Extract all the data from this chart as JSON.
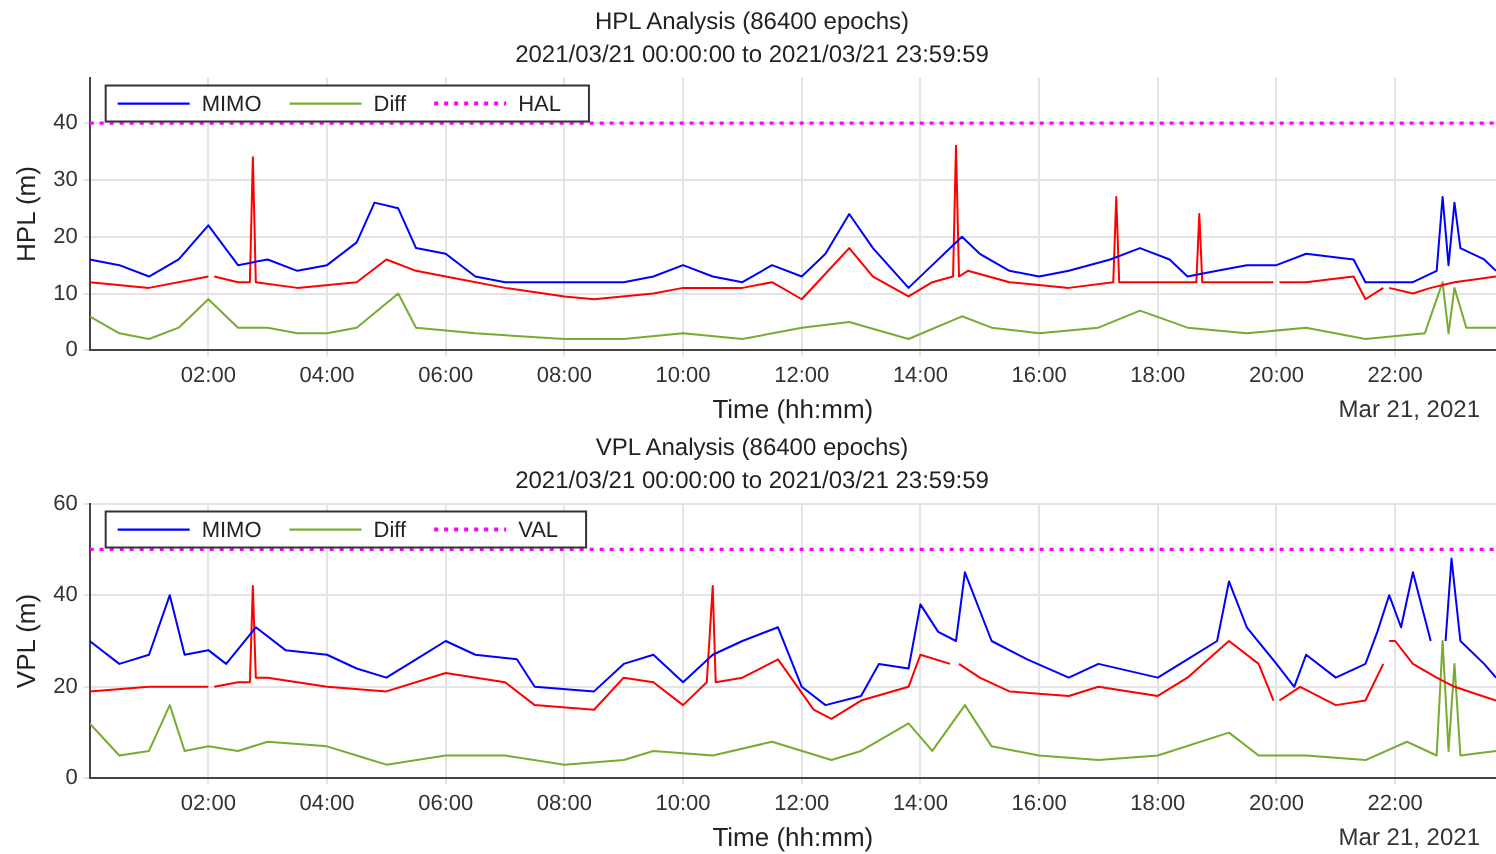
{
  "chart_data": [
    {
      "type": "line",
      "title": "HPL Analysis (86400 epochs)",
      "subtitle": "2021/03/21 00:00:00 to 2021/03/21 23:59:59",
      "xlabel": "Time (hh:mm)",
      "ylabel": "HPL (m)",
      "xlim": [
        0,
        23.7
      ],
      "xticks": [
        {
          "value": 2,
          "label": "02:00"
        },
        {
          "value": 4,
          "label": "04:00"
        },
        {
          "value": 6,
          "label": "06:00"
        },
        {
          "value": 8,
          "label": "08:00"
        },
        {
          "value": 10,
          "label": "10:00"
        },
        {
          "value": 12,
          "label": "12:00"
        },
        {
          "value": 14,
          "label": "14:00"
        },
        {
          "value": 16,
          "label": "16:00"
        },
        {
          "value": 18,
          "label": "18:00"
        },
        {
          "value": 20,
          "label": "20:00"
        },
        {
          "value": 22,
          "label": "22:00"
        }
      ],
      "ylim": [
        0,
        48
      ],
      "yticks": [
        0,
        10,
        20,
        30,
        40
      ],
      "grid": true,
      "legend": "top left",
      "marker": "none",
      "line_style": "solid",
      "annotations": [
        "Mar 21, 2021"
      ],
      "ref_lines": [
        {
          "axis": "y",
          "value": 40,
          "label": "HAL",
          "color": "#ff00ff",
          "line_style": "dotted"
        }
      ],
      "series": [
        {
          "name": "MIMO",
          "color": "#0000ff",
          "x": [
            0,
            0.5,
            1,
            1.5,
            2,
            2.5,
            3,
            3.5,
            4,
            4.5,
            4.8,
            5.2,
            5.5,
            6,
            6.5,
            7,
            8,
            9,
            9.5,
            10,
            10.5,
            11,
            11.5,
            12,
            12.4,
            12.8,
            13.2,
            13.8,
            14.2,
            14.7,
            15,
            15.5,
            16,
            16.5,
            17.2,
            17.7,
            18.2,
            18.5,
            19,
            19.5,
            20,
            20.5,
            21.3,
            21.5,
            22.3,
            22.7,
            22.8,
            22.9,
            23,
            23.1,
            23.5,
            23.7
          ],
          "values": [
            16,
            15,
            13,
            16,
            22,
            15,
            16,
            14,
            15,
            19,
            26,
            25,
            18,
            17,
            13,
            12,
            12,
            12,
            13,
            15,
            13,
            12,
            15,
            13,
            17,
            24,
            18,
            11,
            15,
            20,
            17,
            14,
            13,
            14,
            16,
            18,
            16,
            13,
            14,
            15,
            15,
            17,
            16,
            12,
            12,
            14,
            27,
            15,
            26,
            18,
            16,
            14
          ]
        },
        {
          "color": "#ff0000",
          "x": [
            0,
            1,
            2,
            2.05,
            2.1,
            2.5,
            2.7,
            2.75,
            2.8,
            3.5,
            4.5,
            5,
            5.5,
            6,
            7,
            8,
            8.5,
            9.5,
            10,
            11,
            11.5,
            12,
            12.8,
            13.2,
            13.8,
            14.2,
            14.55,
            14.6,
            14.65,
            14.8,
            15.5,
            16.5,
            17.25,
            17.3,
            17.35,
            17.7,
            18.5,
            18.65,
            18.7,
            18.75,
            19.5,
            19.95,
            20,
            20.05,
            20.5,
            21.3,
            21.5,
            21.8,
            21.85,
            21.9,
            22.3,
            22.6,
            23,
            23.7
          ],
          "values": [
            12,
            11,
            13,
            null,
            13,
            12,
            12,
            34,
            12,
            11,
            12,
            16,
            14,
            13,
            11,
            9.5,
            9,
            10,
            11,
            11,
            12,
            9,
            18,
            13,
            9.5,
            12,
            13,
            36,
            13,
            14,
            12,
            11,
            12,
            27,
            12,
            12,
            12,
            12,
            24,
            12,
            12,
            12,
            null,
            12,
            12,
            13,
            9,
            11,
            null,
            11,
            10,
            11,
            12,
            13
          ]
        },
        {
          "name": "Diff",
          "color": "#77ac30",
          "x": [
            0,
            0.5,
            1,
            1.5,
            2,
            2.5,
            3,
            3.5,
            4,
            4.5,
            5.2,
            5.5,
            6.5,
            8,
            9,
            10,
            11,
            12,
            12.8,
            13.8,
            14.7,
            15.2,
            16,
            17,
            17.7,
            18.5,
            19.5,
            20.5,
            21.5,
            22.5,
            22.8,
            22.9,
            23,
            23.2,
            23.7
          ],
          "values": [
            6,
            3,
            2,
            4,
            9,
            4,
            4,
            3,
            3,
            4,
            10,
            4,
            3,
            2,
            2,
            3,
            2,
            4,
            5,
            2,
            6,
            4,
            3,
            4,
            7,
            4,
            3,
            4,
            2,
            3,
            12,
            3,
            11,
            4,
            4
          ]
        }
      ]
    },
    {
      "type": "line",
      "title": "VPL Analysis (86400 epochs)",
      "subtitle": "2021/03/21 00:00:00 to 2021/03/21 23:59:59",
      "xlabel": "Time (hh:mm)",
      "ylabel": "VPL (m)",
      "xlim": [
        0,
        23.7
      ],
      "xticks": [
        {
          "value": 2,
          "label": "02:00"
        },
        {
          "value": 4,
          "label": "04:00"
        },
        {
          "value": 6,
          "label": "06:00"
        },
        {
          "value": 8,
          "label": "08:00"
        },
        {
          "value": 10,
          "label": "10:00"
        },
        {
          "value": 12,
          "label": "12:00"
        },
        {
          "value": 14,
          "label": "14:00"
        },
        {
          "value": 16,
          "label": "16:00"
        },
        {
          "value": 18,
          "label": "18:00"
        },
        {
          "value": 20,
          "label": "20:00"
        },
        {
          "value": 22,
          "label": "22:00"
        }
      ],
      "ylim": [
        0,
        60
      ],
      "yticks": [
        0,
        20,
        40,
        60
      ],
      "grid": true,
      "legend": "top left",
      "marker": "none",
      "line_style": "solid",
      "annotations": [
        "Mar 21, 2021"
      ],
      "ref_lines": [
        {
          "axis": "y",
          "value": 50,
          "label": "VAL",
          "color": "#ff00ff",
          "line_style": "dotted"
        }
      ],
      "series": [
        {
          "name": "MIMO",
          "color": "#0000ff",
          "x": [
            0,
            0.5,
            1,
            1.35,
            1.6,
            2,
            2.3,
            2.8,
            3.3,
            4,
            4.5,
            5,
            5.5,
            6,
            6.5,
            7.2,
            7.5,
            8.5,
            9,
            9.5,
            10,
            10.5,
            11,
            11.6,
            12,
            12.4,
            13,
            13.3,
            13.8,
            14,
            14.3,
            14.6,
            14.75,
            15.2,
            15.8,
            16.5,
            17,
            18,
            18.5,
            19,
            19.2,
            19.5,
            20,
            20.3,
            20.5,
            21,
            21.5,
            21.7,
            21.9,
            22.1,
            22.3,
            22.6,
            22.75,
            22.85,
            22.95,
            23.1,
            23.5,
            23.7
          ],
          "values": [
            30,
            25,
            27,
            40,
            27,
            28,
            25,
            33,
            28,
            27,
            24,
            22,
            26,
            30,
            27,
            26,
            20,
            19,
            25,
            27,
            21,
            27,
            30,
            33,
            20,
            16,
            18,
            25,
            24,
            38,
            32,
            30,
            45,
            30,
            26,
            22,
            25,
            22,
            26,
            30,
            43,
            33,
            25,
            20,
            27,
            22,
            25,
            32,
            40,
            33,
            45,
            30,
            null,
            30,
            48,
            30,
            25,
            22
          ]
        },
        {
          "color": "#ff0000",
          "x": [
            0,
            1,
            2,
            2.05,
            2.1,
            2.5,
            2.7,
            2.75,
            2.8,
            3,
            4,
            5,
            6,
            7,
            7.5,
            8.5,
            9,
            9.5,
            10,
            10.4,
            10.5,
            10.55,
            11,
            11.6,
            12.2,
            12.5,
            13,
            13.8,
            14,
            14.5,
            14.6,
            14.65,
            15,
            15.5,
            16.5,
            17,
            18,
            18.5,
            19.2,
            19.7,
            19.95,
            20,
            20.05,
            20.4,
            21,
            21.5,
            21.8,
            21.85,
            21.9,
            22,
            22.3,
            22.7,
            23,
            23.7
          ],
          "values": [
            19,
            20,
            20,
            null,
            20,
            21,
            21,
            42,
            22,
            22,
            20,
            19,
            23,
            21,
            16,
            15,
            22,
            21,
            16,
            21,
            42,
            21,
            22,
            26,
            15,
            13,
            17,
            20,
            27,
            25,
            null,
            25,
            22,
            19,
            18,
            20,
            18,
            22,
            30,
            25,
            17,
            null,
            17,
            20,
            16,
            17,
            25,
            null,
            30,
            30,
            25,
            22,
            20,
            17
          ]
        },
        {
          "name": "Diff",
          "color": "#77ac30",
          "x": [
            0,
            0.5,
            1,
            1.35,
            1.6,
            2,
            2.5,
            3,
            4,
            4.5,
            5,
            6,
            7,
            8,
            9,
            9.5,
            10.5,
            11.5,
            12.5,
            13,
            13.8,
            14.2,
            14.75,
            15.2,
            16,
            17,
            18,
            19.2,
            19.7,
            20.5,
            21.5,
            22.2,
            22.7,
            22.8,
            22.9,
            23,
            23.1,
            23.7
          ],
          "values": [
            12,
            5,
            6,
            16,
            6,
            7,
            6,
            8,
            7,
            5,
            3,
            5,
            5,
            3,
            4,
            6,
            5,
            8,
            4,
            6,
            12,
            6,
            16,
            7,
            5,
            4,
            5,
            10,
            5,
            5,
            4,
            8,
            5,
            30,
            6,
            25,
            5,
            6
          ]
        }
      ]
    }
  ]
}
